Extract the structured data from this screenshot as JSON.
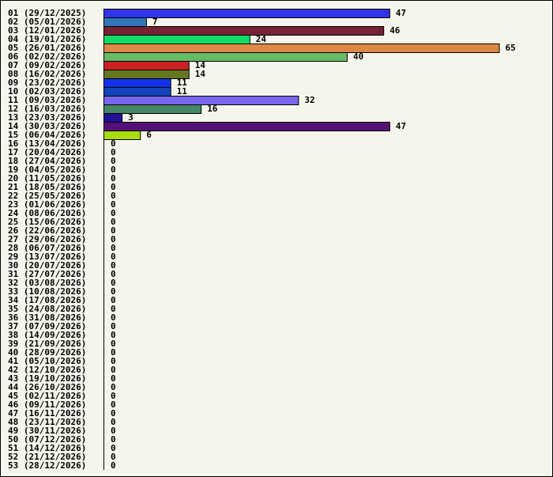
{
  "chart_data": {
    "type": "bar",
    "orientation": "horizontal",
    "title": "",
    "xlabel": "",
    "ylabel": "",
    "xlim": [
      0,
      65
    ],
    "grid": false,
    "legend": "none",
    "categories": [
      "01 (29/12/2025)",
      "02 (05/01/2026)",
      "03 (12/01/2026)",
      "04 (19/01/2026)",
      "05 (26/01/2026)",
      "06 (02/02/2026)",
      "07 (09/02/2026)",
      "08 (16/02/2026)",
      "09 (23/02/2026)",
      "10 (02/03/2026)",
      "11 (09/03/2026)",
      "12 (16/03/2026)",
      "13 (23/03/2026)",
      "14 (30/03/2026)",
      "15 (06/04/2026)",
      "16 (13/04/2026)",
      "17 (20/04/2026)",
      "18 (27/04/2026)",
      "19 (04/05/2026)",
      "20 (11/05/2026)",
      "21 (18/05/2026)",
      "22 (25/05/2026)",
      "23 (01/06/2026)",
      "24 (08/06/2026)",
      "25 (15/06/2026)",
      "26 (22/06/2026)",
      "27 (29/06/2026)",
      "28 (06/07/2026)",
      "29 (13/07/2026)",
      "30 (20/07/2026)",
      "31 (27/07/2026)",
      "32 (03/08/2026)",
      "33 (10/08/2026)",
      "34 (17/08/2026)",
      "35 (24/08/2026)",
      "36 (31/08/2026)",
      "37 (07/09/2026)",
      "38 (14/09/2026)",
      "39 (21/09/2026)",
      "40 (28/09/2026)",
      "41 (05/10/2026)",
      "42 (12/10/2026)",
      "43 (19/10/2026)",
      "44 (26/10/2026)",
      "45 (02/11/2026)",
      "46 (09/11/2026)",
      "47 (16/11/2026)",
      "48 (23/11/2026)",
      "49 (30/11/2026)",
      "50 (07/12/2026)",
      "51 (14/12/2026)",
      "52 (21/12/2026)",
      "53 (28/12/2026)"
    ],
    "values": [
      47,
      7,
      46,
      24,
      65,
      40,
      14,
      14,
      11,
      11,
      32,
      16,
      3,
      47,
      6,
      0,
      0,
      0,
      0,
      0,
      0,
      0,
      0,
      0,
      0,
      0,
      0,
      0,
      0,
      0,
      0,
      0,
      0,
      0,
      0,
      0,
      0,
      0,
      0,
      0,
      0,
      0,
      0,
      0,
      0,
      0,
      0,
      0,
      0,
      0,
      0,
      0,
      0
    ],
    "colors": [
      "#3333ee",
      "#3377bb",
      "#772233",
      "#11dd66",
      "#dd8844",
      "#66bb66",
      "#cc2222",
      "#667722",
      "#1133ee",
      "#1144bb",
      "#7766ee",
      "#448866",
      "#221199",
      "#551177",
      "#aadd11"
    ]
  }
}
